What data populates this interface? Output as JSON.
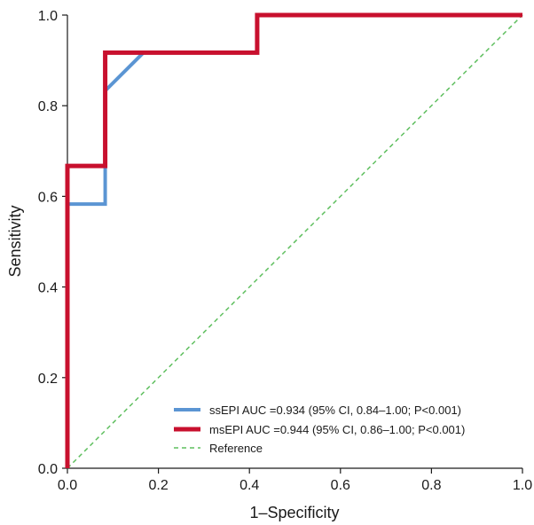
{
  "chart_data": {
    "type": "line",
    "title": "",
    "xlabel": "1–Specificity",
    "ylabel": "Sensitivity",
    "xlim": [
      0,
      1
    ],
    "ylim": [
      0,
      1
    ],
    "x_ticks": [
      0.0,
      0.2,
      0.4,
      0.6,
      0.8,
      1.0
    ],
    "y_ticks": [
      0.0,
      0.2,
      0.4,
      0.6,
      0.8,
      1.0
    ],
    "x_tick_labels": [
      "0.0",
      "0.2",
      "0.4",
      "0.6",
      "0.8",
      "1.0"
    ],
    "y_tick_labels": [
      "0.0",
      "0.2",
      "0.4",
      "0.6",
      "0.8",
      "1.0"
    ],
    "grid": false,
    "legend_position": "bottom-right",
    "series": [
      {
        "name": "ssEPI AUC =0.934 (95% CI, 0.84–1.00; P<0.001)",
        "color": "#5b95d3",
        "style": "solid",
        "x": [
          0.0,
          0.0,
          0.083,
          0.083,
          0.167,
          0.417,
          0.417,
          1.0
        ],
        "y": [
          0.0,
          0.583,
          0.583,
          0.833,
          0.917,
          0.917,
          1.0,
          1.0
        ]
      },
      {
        "name": "msEPI AUC =0.944 (95% CI, 0.86–1.00; P<0.001)",
        "color": "#c8102e",
        "style": "solid",
        "x": [
          0.0,
          0.0,
          0.083,
          0.083,
          0.417,
          0.417,
          1.0
        ],
        "y": [
          0.0,
          0.667,
          0.667,
          0.917,
          0.917,
          1.0,
          1.0
        ]
      },
      {
        "name": "Reference",
        "color": "#5fbf5f",
        "style": "dashed",
        "x": [
          0.0,
          1.0
        ],
        "y": [
          0.0,
          1.0
        ]
      }
    ]
  }
}
